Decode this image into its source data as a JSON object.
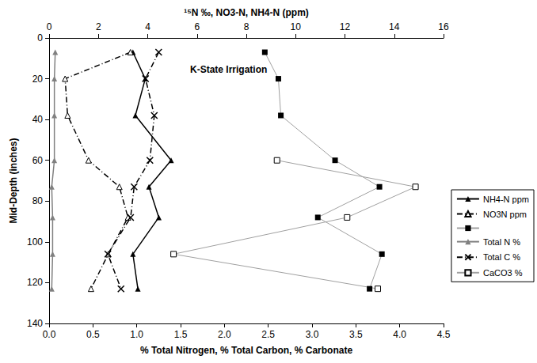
{
  "chart_data": {
    "type": "line",
    "xlabel": "% Total Nitrogen, % Total Carbon, % Carbonate",
    "x2label": "¹⁵N ‰, NO3-N, NH4-N (ppm)",
    "ylabel": "Mid-Depth (inches)",
    "annotations": [
      "K-State Irrigation"
    ],
    "y": [
      7,
      20,
      38,
      60,
      73,
      88,
      106,
      123
    ],
    "xlim": [
      0,
      4.5
    ],
    "xticks": [
      {
        "value": 0,
        "label": "0.0"
      },
      {
        "value": 0.5,
        "label": "0.5"
      },
      {
        "value": 1,
        "label": "1.0"
      },
      {
        "value": 1.5,
        "label": "1.5"
      },
      {
        "value": 2,
        "label": "2.0"
      },
      {
        "value": 2.5,
        "label": "2.5"
      },
      {
        "value": 3,
        "label": "3.0"
      },
      {
        "value": 3.5,
        "label": "3.5"
      },
      {
        "value": 4,
        "label": "4.0"
      },
      {
        "value": 4.5,
        "label": "4.5"
      }
    ],
    "x2lim": [
      0,
      16
    ],
    "x2ticks": [
      0,
      2,
      4,
      6,
      8,
      10,
      12,
      14,
      16
    ],
    "ylim": [
      0,
      140
    ],
    "yticks": [
      0,
      20,
      40,
      60,
      80,
      100,
      120,
      140
    ],
    "grid": false,
    "legend": "right",
    "series": [
      {
        "name": "NH4-N ppm",
        "axis": "x2",
        "color": "#000000",
        "marker": "triangle",
        "line_style": "solid",
        "values": [
          3.4,
          3.9,
          3.5,
          4.95,
          4.05,
          4.45,
          3.4,
          3.6
        ]
      },
      {
        "name": "NO3N ppm",
        "axis": "x2",
        "color": "#000000",
        "marker": "open-triangle",
        "line_style": "dashdot",
        "values": [
          3.3,
          0.65,
          0.75,
          1.6,
          2.85,
          3.2,
          2.4,
          1.7
        ]
      },
      {
        "axis": "x2",
        "color": "#000000",
        "marker": "square",
        "line_style": "thin",
        "values": [
          8.75,
          9.3,
          9.4,
          11.6,
          13.4,
          10.9,
          13.5,
          13.0
        ]
      },
      {
        "name": "Total N %",
        "color": "#808080",
        "marker": "triangle",
        "line_style": "solid",
        "values": [
          0.07,
          0.06,
          0.06,
          0.06,
          0.03,
          0.04,
          0.04,
          0.03
        ]
      },
      {
        "name": "Total C %",
        "color": "#000000",
        "marker": "x",
        "line_style": "dashdot",
        "values": [
          1.25,
          1.1,
          1.2,
          1.15,
          0.97,
          0.93,
          0.67,
          0.82
        ]
      },
      {
        "name": "CaCO3 %",
        "color": "#000000",
        "marker": "open-square",
        "line_style": "thin",
        "values": [
          null,
          null,
          null,
          2.6,
          4.18,
          3.4,
          1.42,
          3.75
        ]
      }
    ]
  }
}
